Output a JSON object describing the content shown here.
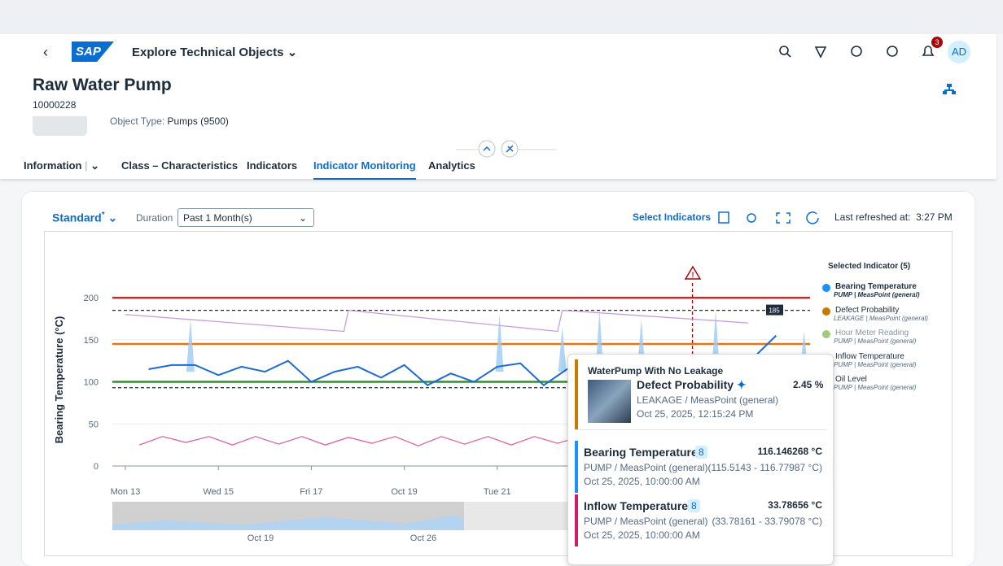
{
  "shell": {
    "logo": "SAP",
    "title": "Explore Technical Objects",
    "notifications": "3",
    "avatar": "AD"
  },
  "header": {
    "title": "Raw Water Pump",
    "id": "10000228",
    "object_type_label": "Object Type:",
    "object_type": "Pumps (9500)"
  },
  "tabs": [
    "Information",
    "Class – Characteristics",
    "Indicators",
    "Indicator Monitoring",
    "Analytics"
  ],
  "toolbar": {
    "variant": "Standard",
    "variant_marker": "*",
    "duration_label": "Duration",
    "duration": "Past 1 Month(s)",
    "select_indicators": "Select Indicators",
    "refreshed_label": "Last refreshed at:",
    "refreshed_time": "3:27 PM"
  },
  "chart": {
    "type": "line",
    "y_label": "Bearing Temperature (°C)",
    "ylim": [
      0,
      260
    ],
    "yticks": [
      0,
      50,
      100,
      150,
      200
    ],
    "xlim": [
      12.72,
      27.73
    ],
    "xticks": [
      {
        "value": 13,
        "label": "Mon 13"
      },
      {
        "value": 15,
        "label": "Wed 15"
      },
      {
        "value": 17,
        "label": "Fri 17"
      },
      {
        "value": 19,
        "label": "Oct 19"
      },
      {
        "value": 21,
        "label": "Tue 21"
      }
    ],
    "thresholds": [
      {
        "value": 200,
        "color": "#d0272e"
      },
      {
        "value": 145,
        "color": "#e9730c"
      },
      {
        "value": 100,
        "color": "#3a8a3a"
      },
      {
        "value": 185,
        "color": "#1d2d3e",
        "dashed": true,
        "label": 185
      },
      {
        "value": 93,
        "color": "#1d2d3e",
        "dashed": true
      }
    ],
    "marker_x": 25.2,
    "series": [
      {
        "kind": "spike",
        "color": "#9ccbf3",
        "x": [
          14.4,
          21.05,
          22.4,
          23.2,
          24.1,
          25.7,
          27.6
        ],
        "values": [
          175,
          180,
          165,
          185,
          175,
          185,
          160
        ]
      },
      {
        "kind": "line",
        "color": "#c79ce0",
        "x": [
          13.0,
          17.7,
          17.8,
          22.3,
          22.4,
          26.4
        ],
        "values": [
          180,
          160,
          185,
          160,
          185,
          170
        ]
      },
      {
        "kind": "line",
        "color": "#1b6ad8",
        "x": [
          13.5,
          14,
          14.5,
          15,
          15.5,
          16,
          16.5,
          17,
          17.5,
          18,
          18.5,
          19,
          19.5,
          20,
          20.5,
          21,
          21.5,
          22,
          22.5,
          23,
          23.5,
          24,
          24.5,
          25,
          25.5,
          26,
          26.5,
          27
        ],
        "values": [
          115,
          120,
          120,
          108,
          118,
          112,
          125,
          100,
          112,
          118,
          105,
          120,
          96,
          110,
          100,
          118,
          122,
          96,
          115,
          124,
          100,
          118,
          108,
          96,
          115,
          122,
          128,
          155
        ]
      },
      {
        "kind": "line",
        "color": "#e0649b",
        "x": [
          13.3,
          13.8,
          14.3,
          14.8,
          15.3,
          15.8,
          16.3,
          16.8,
          17.3,
          17.8,
          18.3,
          18.8,
          19.3,
          19.8,
          20.3,
          20.8,
          21.3,
          21.8,
          22.3,
          22.8,
          23.3,
          24.3,
          24.8
        ],
        "values": [
          25,
          35,
          28,
          35,
          25,
          35,
          26,
          35,
          25,
          34,
          27,
          35,
          24,
          35,
          26,
          35,
          25,
          35,
          27,
          35,
          25,
          34,
          26
        ]
      }
    ]
  },
  "legend": {
    "title": "Selected Indicator (5)",
    "items": [
      {
        "name": "Bearing Temperature",
        "sub": "PUMP | MeasPoint (general)",
        "color": "#1b90ff"
      },
      {
        "name": "Defect Probability",
        "sub": "LEAKAGE | MeasPoint (general)",
        "color": "#c87b00"
      },
      {
        "name": "Hour Meter Reading",
        "sub": "PUMP | MeasPoint (general)",
        "color": "#a3c97b"
      },
      {
        "name": "Inflow Temperature",
        "sub": "PUMP | MeasPoint (general)",
        "color": "#aa0808"
      },
      {
        "name": "Oil Level",
        "sub": "PUMP | MeasPoint (general)",
        "color": "#7858ff"
      }
    ]
  },
  "tooltip": {
    "title": "WaterPump With No Leakage",
    "main": {
      "name": "Defect Probability",
      "value": "2.45 %",
      "sub": "LEAKAGE / MeasPoint (general)",
      "time": "Oct 25, 2025, 12:15:24 PM"
    },
    "rows": [
      {
        "name": "Bearing Temperature",
        "count": "8",
        "value": "116.146268 °C",
        "sub": "PUMP / MeasPoint (general)",
        "range": "(115.5143 - 116.77987 °C)",
        "time": "Oct 25, 2025, 10:00:00 AM",
        "color": "#1b90ff"
      },
      {
        "name": "Inflow Temperature",
        "count": "8",
        "value": "33.78656 °C",
        "sub": "PUMP / MeasPoint (general)",
        "range": "(33.78161 - 33.79078 °C)",
        "time": "Oct 25, 2025, 10:00:00 AM",
        "color": "#d01c6a"
      }
    ]
  },
  "navigator": {
    "labels": [
      "Oct 19",
      "Oct 26"
    ]
  }
}
